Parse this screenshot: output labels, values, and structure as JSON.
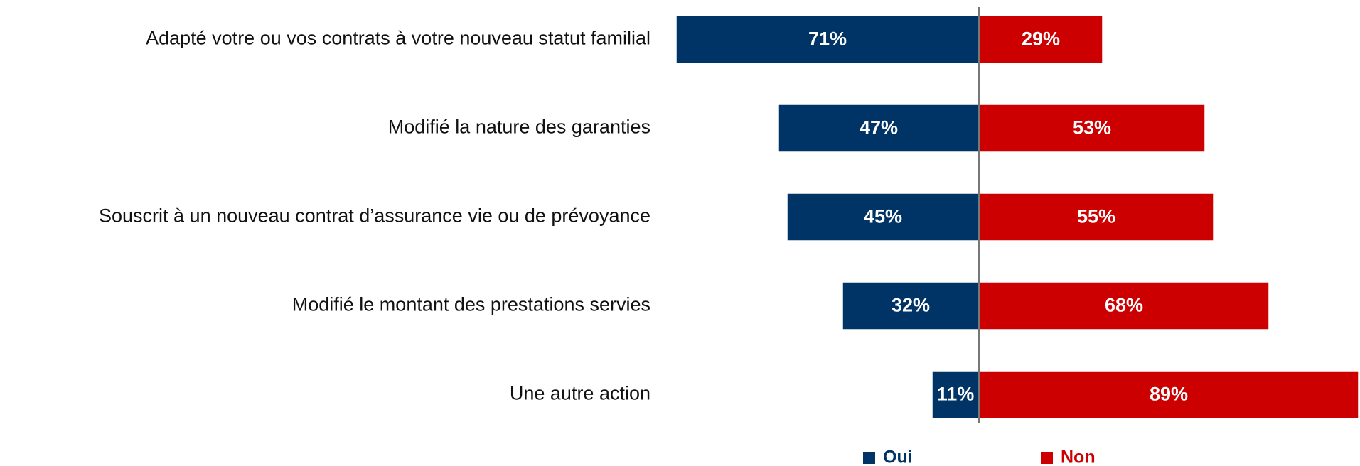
{
  "chart_data": {
    "type": "diverging_bar",
    "categories": [
      "Adapté votre ou vos contrats à votre nouveau statut familial",
      "Modifié la nature des garanties",
      "Souscrit à un nouveau contrat d’assurance vie ou de prévoyance",
      "Modifié le montant des prestations servies",
      "Une autre action"
    ],
    "series": [
      {
        "name": "Oui",
        "color": "#003466",
        "values": [
          71,
          47,
          45,
          32,
          11
        ],
        "value_labels": [
          "71%",
          "47%",
          "45%",
          "32%",
          "11%"
        ]
      },
      {
        "name": "Non",
        "color": "#cc0000",
        "values": [
          29,
          53,
          55,
          68,
          89
        ],
        "value_labels": [
          "29%",
          "53%",
          "55%",
          "68%",
          "89%"
        ]
      }
    ]
  }
}
